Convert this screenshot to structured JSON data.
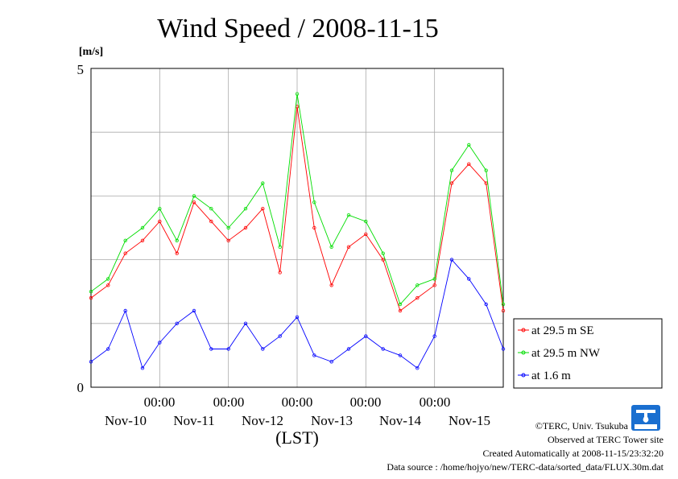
{
  "chart_data": {
    "type": "line",
    "title": "Wind Speed / 2008-11-15",
    "ylabel": "[m/s]",
    "xlabel": "(LST)",
    "ylim": [
      0,
      5
    ],
    "y_ticks": [
      "0",
      "5"
    ],
    "x_time_labels": [
      "00:00",
      "00:00",
      "00:00",
      "00:00",
      "00:00"
    ],
    "x_day_labels": [
      "Nov-10",
      "Nov-11",
      "Nov-12",
      "Nov-13",
      "Nov-14",
      "Nov-15"
    ],
    "x_unit": "days",
    "xlim": [
      0,
      6
    ],
    "grid": true,
    "legend_position": "right",
    "series": [
      {
        "name": "at 29.5 m SE",
        "color": "#ff0000",
        "x": [
          0,
          0.25,
          0.5,
          0.75,
          1.0,
          1.25,
          1.5,
          1.75,
          2.0,
          2.25,
          2.5,
          2.75,
          3.0,
          3.25,
          3.5,
          3.75,
          4.0,
          4.25,
          4.5,
          4.75,
          5.0,
          5.25,
          5.5,
          5.75,
          6.0
        ],
        "values": [
          1.4,
          1.6,
          2.1,
          2.3,
          2.6,
          2.1,
          2.9,
          2.6,
          2.3,
          2.5,
          2.8,
          1.8,
          4.4,
          2.5,
          1.6,
          2.2,
          2.4,
          2.0,
          1.2,
          1.4,
          1.6,
          3.2,
          3.5,
          3.2,
          1.2
        ]
      },
      {
        "name": "at 29.5 m NW",
        "color": "#00dd00",
        "x": [
          0,
          0.25,
          0.5,
          0.75,
          1.0,
          1.25,
          1.5,
          1.75,
          2.0,
          2.25,
          2.5,
          2.75,
          3.0,
          3.25,
          3.5,
          3.75,
          4.0,
          4.25,
          4.5,
          4.75,
          5.0,
          5.25,
          5.5,
          5.75,
          6.0
        ],
        "values": [
          1.5,
          1.7,
          2.3,
          2.5,
          2.8,
          2.3,
          3.0,
          2.8,
          2.5,
          2.8,
          3.2,
          2.2,
          4.6,
          2.9,
          2.2,
          2.7,
          2.6,
          2.1,
          1.3,
          1.6,
          1.7,
          3.4,
          3.8,
          3.4,
          1.3
        ]
      },
      {
        "name": "at 1.6 m",
        "color": "#0000ff",
        "x": [
          0,
          0.25,
          0.5,
          0.75,
          1.0,
          1.25,
          1.5,
          1.75,
          2.0,
          2.25,
          2.5,
          2.75,
          3.0,
          3.25,
          3.5,
          3.75,
          4.0,
          4.25,
          4.5,
          4.75,
          5.0,
          5.25,
          5.5,
          5.75,
          6.0
        ],
        "values": [
          0.4,
          0.6,
          1.2,
          0.3,
          0.7,
          1.0,
          1.2,
          0.6,
          0.6,
          1.0,
          0.6,
          0.8,
          1.1,
          0.5,
          0.4,
          0.6,
          0.8,
          0.6,
          0.5,
          0.3,
          0.8,
          2.0,
          1.7,
          1.3,
          0.6
        ]
      }
    ]
  },
  "footer": {
    "copyright": "©TERC, Univ. Tsukuba",
    "site": "Observed at TERC Tower site",
    "created": "Created Automatically at 2008-11-15/23:32:20",
    "source": "Data source : /home/hojyo/new/TERC-data/sorted_data/FLUX.30m.dat"
  },
  "logo": {
    "text": "TERC",
    "color": "#1a6fd0"
  }
}
